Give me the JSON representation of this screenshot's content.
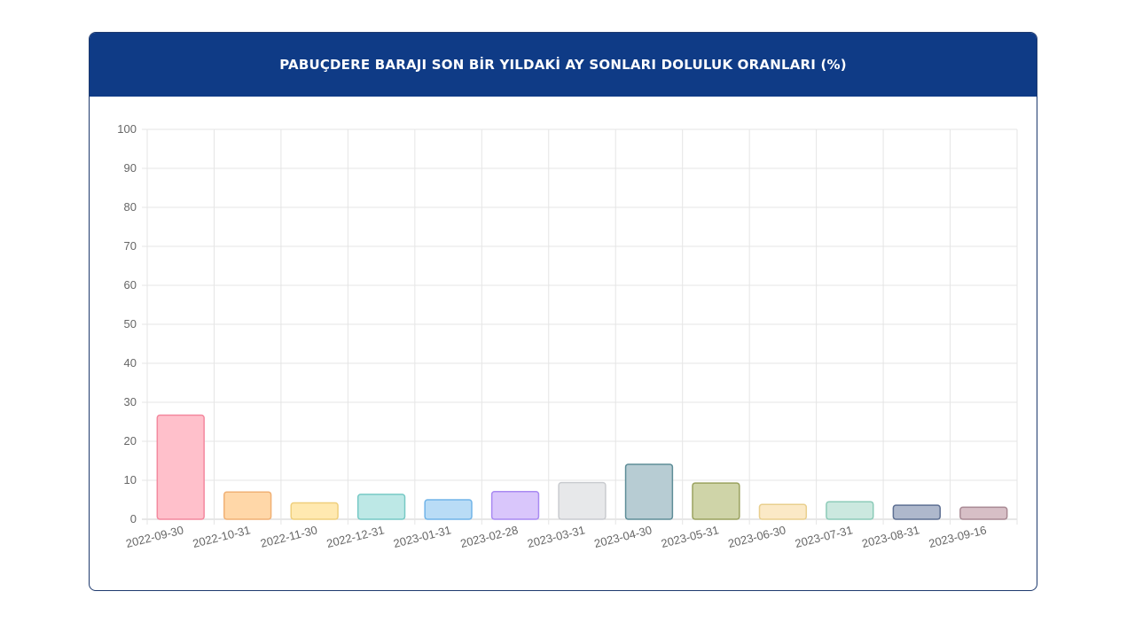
{
  "chart_data": {
    "type": "bar",
    "title": "PABUÇDERE BARAJI SON BİR YILDAKİ AY SONLARI DOLULUK ORANLARI (%)",
    "categories": [
      "2022-09-30",
      "2022-10-31",
      "2022-11-30",
      "2022-12-31",
      "2023-01-31",
      "2023-02-28",
      "2023-03-31",
      "2023-04-30",
      "2023-05-31",
      "2023-06-30",
      "2023-07-31",
      "2023-08-31",
      "2023-09-16"
    ],
    "values": [
      26.7,
      7.0,
      4.2,
      6.4,
      5.0,
      7.1,
      9.4,
      14.1,
      9.3,
      3.8,
      4.5,
      3.6,
      3.1
    ],
    "ylim": [
      0,
      100
    ],
    "yticks": [
      0,
      10,
      20,
      30,
      40,
      50,
      60,
      70,
      80,
      90,
      100
    ],
    "grid": true,
    "legend": "none",
    "colors": {
      "fills": [
        "#ffc0cb",
        "#ffd7a8",
        "#ffe9b0",
        "#bde8e6",
        "#b9dcf6",
        "#d9c6fb",
        "#e7e8ea",
        "#b7ccd3",
        "#cfd4a8",
        "#fbe9c6",
        "#cbe8df",
        "#aeb8cc",
        "#d7bfc6"
      ],
      "borders": [
        "#f3889e",
        "#f0b074",
        "#efcf7c",
        "#77c9c5",
        "#70b4e8",
        "#a98af2",
        "#c9cbcf",
        "#5e8d98",
        "#9aa25e",
        "#e9cf8e",
        "#8ccbb8",
        "#5d6f92",
        "#a88993"
      ],
      "header": "#0f3b86",
      "grid": "#e5e5e5"
    }
  }
}
